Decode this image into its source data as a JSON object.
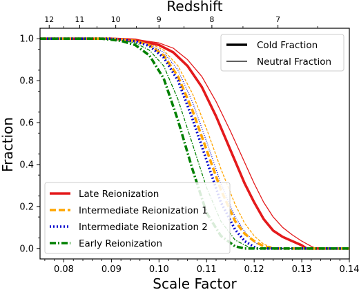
{
  "chart_data": {
    "type": "line",
    "xlabel": "Scale Factor",
    "ylabel": "Fraction",
    "top_xlabel": "Redshift",
    "xlim": [
      0.075,
      0.14
    ],
    "ylim": [
      -0.05,
      1.05
    ],
    "xticks": [
      0.08,
      0.09,
      0.1,
      0.11,
      0.12,
      0.13,
      0.14
    ],
    "xtick_labels": [
      "0.08",
      "0.09",
      "0.10",
      "0.11",
      "0.12",
      "0.13",
      "0.14"
    ],
    "yticks": [
      0.0,
      0.2,
      0.4,
      0.6,
      0.8,
      1.0
    ],
    "ytick_labels": [
      "0.0",
      "0.2",
      "0.4",
      "0.6",
      "0.8",
      "1.0"
    ],
    "top_ticks": [
      {
        "z": 12,
        "label": "12"
      },
      {
        "z": 11,
        "label": "11"
      },
      {
        "z": 10,
        "label": "10"
      },
      {
        "z": 9,
        "label": "9"
      },
      {
        "z": 8,
        "label": "8"
      },
      {
        "z": 7,
        "label": "7"
      }
    ],
    "style_legend": {
      "location": "upper right",
      "entries": [
        {
          "label": "Cold Fraction",
          "width": "thick"
        },
        {
          "label": "Neutral Fraction",
          "width": "thin"
        }
      ]
    },
    "legend": {
      "location": "lower left",
      "entries": [
        {
          "label": "Late Reionization",
          "color": "#e41a1c",
          "dash": "solid"
        },
        {
          "label": "Intermediate Reionization 1",
          "color": "#ffa500",
          "dash": "dashed"
        },
        {
          "label": "Intermediate Reionization 2",
          "color": "#0000cc",
          "dash": "dotted"
        },
        {
          "label": "Early Reionization",
          "color": "#008000",
          "dash": "dashdot"
        }
      ]
    },
    "series": [
      {
        "name": "Late Reionization",
        "quantity": "Cold Fraction",
        "color": "#e41a1c",
        "dash": "solid",
        "width": "thick",
        "x": [
          0.075,
          0.09,
          0.095,
          0.1,
          0.103,
          0.106,
          0.109,
          0.112,
          0.115,
          0.118,
          0.12,
          0.122,
          0.124,
          0.126,
          0.128,
          0.13,
          0.131,
          0.14
        ],
        "y": [
          1.0,
          1.0,
          0.995,
          0.97,
          0.935,
          0.87,
          0.77,
          0.63,
          0.47,
          0.31,
          0.22,
          0.14,
          0.085,
          0.055,
          0.035,
          0.015,
          0.0,
          0.0
        ]
      },
      {
        "name": "Late Reionization",
        "quantity": "Neutral Fraction",
        "color": "#e41a1c",
        "dash": "solid",
        "width": "thin",
        "x": [
          0.075,
          0.09,
          0.095,
          0.1,
          0.103,
          0.106,
          0.109,
          0.112,
          0.115,
          0.118,
          0.12,
          0.122,
          0.124,
          0.126,
          0.128,
          0.13,
          0.132,
          0.133,
          0.14
        ],
        "y": [
          1.0,
          1.0,
          0.997,
          0.98,
          0.955,
          0.9,
          0.82,
          0.7,
          0.56,
          0.41,
          0.31,
          0.22,
          0.15,
          0.1,
          0.065,
          0.035,
          0.01,
          0.0,
          0.0
        ]
      },
      {
        "name": "Intermediate Reionization 1",
        "quantity": "Cold Fraction",
        "color": "#ffa500",
        "dash": "dashed",
        "width": "thick",
        "x": [
          0.075,
          0.09,
          0.095,
          0.098,
          0.101,
          0.104,
          0.107,
          0.11,
          0.113,
          0.116,
          0.118,
          0.12,
          0.122,
          0.124,
          0.14
        ],
        "y": [
          1.0,
          1.0,
          0.99,
          0.97,
          0.92,
          0.82,
          0.66,
          0.47,
          0.28,
          0.13,
          0.07,
          0.035,
          0.01,
          0.0,
          0.0
        ]
      },
      {
        "name": "Intermediate Reionization 1",
        "quantity": "Neutral Fraction",
        "color": "#ffa500",
        "dash": "dashed",
        "width": "thin",
        "x": [
          0.075,
          0.09,
          0.095,
          0.098,
          0.101,
          0.104,
          0.107,
          0.11,
          0.113,
          0.116,
          0.118,
          0.12,
          0.122,
          0.1245,
          0.14
        ],
        "y": [
          1.0,
          1.0,
          0.993,
          0.98,
          0.945,
          0.87,
          0.74,
          0.57,
          0.38,
          0.21,
          0.12,
          0.06,
          0.02,
          0.0,
          0.0
        ]
      },
      {
        "name": "Intermediate Reionization 2",
        "quantity": "Cold Fraction",
        "color": "#0000cc",
        "dash": "dotted",
        "width": "thick",
        "x": [
          0.075,
          0.09,
          0.095,
          0.098,
          0.101,
          0.104,
          0.107,
          0.11,
          0.113,
          0.116,
          0.118,
          0.1205,
          0.14
        ],
        "y": [
          1.0,
          1.0,
          0.988,
          0.965,
          0.91,
          0.8,
          0.62,
          0.42,
          0.22,
          0.09,
          0.035,
          0.0,
          0.0
        ]
      },
      {
        "name": "Intermediate Reionization 2",
        "quantity": "Neutral Fraction",
        "color": "#0000cc",
        "dash": "dotted",
        "width": "thin",
        "x": [
          0.075,
          0.09,
          0.095,
          0.098,
          0.101,
          0.104,
          0.107,
          0.11,
          0.113,
          0.116,
          0.118,
          0.12,
          0.1225,
          0.14
        ],
        "y": [
          1.0,
          1.0,
          0.992,
          0.975,
          0.935,
          0.85,
          0.7,
          0.51,
          0.31,
          0.15,
          0.08,
          0.03,
          0.0,
          0.0
        ]
      },
      {
        "name": "Early Reionization",
        "quantity": "Cold Fraction",
        "color": "#008000",
        "dash": "dashdot",
        "width": "thick",
        "x": [
          0.075,
          0.088,
          0.092,
          0.095,
          0.098,
          0.101,
          0.104,
          0.107,
          0.11,
          0.113,
          0.116,
          0.118,
          0.14
        ],
        "y": [
          1.0,
          1.0,
          0.99,
          0.97,
          0.92,
          0.81,
          0.61,
          0.38,
          0.17,
          0.06,
          0.01,
          0.0,
          0.0
        ]
      },
      {
        "name": "Early Reionization",
        "quantity": "Neutral Fraction",
        "color": "#008000",
        "dash": "dashdot",
        "width": "thin",
        "x": [
          0.075,
          0.088,
          0.092,
          0.095,
          0.098,
          0.101,
          0.104,
          0.107,
          0.11,
          0.113,
          0.116,
          0.119,
          0.1205,
          0.14
        ],
        "y": [
          1.0,
          1.0,
          0.993,
          0.98,
          0.945,
          0.87,
          0.71,
          0.5,
          0.29,
          0.13,
          0.04,
          0.005,
          0.0,
          0.0
        ]
      }
    ]
  }
}
